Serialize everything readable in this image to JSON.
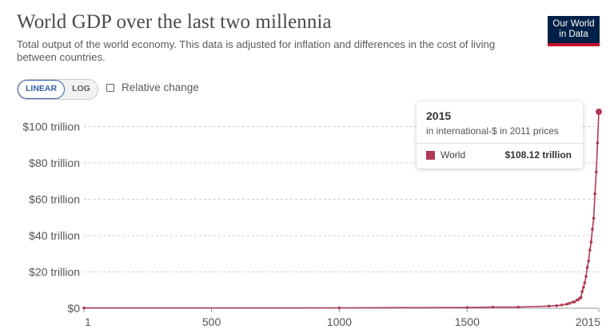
{
  "header": {
    "title": "World GDP over the last two millennia",
    "subtitle": "Total output of the world economy. This data is adjusted for inflation and differences in the cost of living between countries."
  },
  "logo": {
    "line1": "Our World",
    "line2": "in Data",
    "bg": "#002147",
    "accent": "#c8102e"
  },
  "controls": {
    "linear_label": "LINEAR",
    "log_label": "LOG",
    "selected_scale": "linear",
    "relative_change_label": "Relative change",
    "relative_change_checked": false
  },
  "tooltip": {
    "year": "2015",
    "unit": "in international-$ in 2011 prices",
    "entity": "World",
    "value": "$108.12 trillion"
  },
  "colors": {
    "series": "#b13a55",
    "grid": "#cccccc",
    "axis_text": "#555555"
  },
  "chart_data": {
    "type": "line",
    "title": "World GDP over the last two millennia",
    "xlabel": "",
    "ylabel": "",
    "x_ticks": [
      1,
      500,
      1000,
      1500,
      2015
    ],
    "y_ticks": [
      0,
      20,
      40,
      60,
      80,
      100
    ],
    "y_tick_labels": [
      "$0",
      "$20 trillion",
      "$40 trillion",
      "$60 trillion",
      "$80 trillion",
      "$100 trillion"
    ],
    "xlim": [
      1,
      2015
    ],
    "ylim": [
      0,
      108.12
    ],
    "grid": true,
    "series": [
      {
        "name": "World",
        "x": [
          1,
          1000,
          1500,
          1600,
          1700,
          1820,
          1850,
          1870,
          1890,
          1900,
          1913,
          1920,
          1929,
          1935,
          1940,
          1945,
          1950,
          1955,
          1960,
          1965,
          1970,
          1975,
          1980,
          1985,
          1990,
          1995,
          2000,
          2005,
          2010,
          2015
        ],
        "y": [
          0.18,
          0.21,
          0.43,
          0.6,
          0.64,
          1.2,
          1.4,
          1.8,
          2.3,
          2.7,
          3.4,
          3.5,
          4.5,
          4.7,
          5.5,
          5.9,
          9.25,
          11.5,
          14.0,
          17.5,
          22.5,
          26.0,
          32.0,
          36.5,
          43.5,
          49.5,
          63.0,
          75.0,
          91.0,
          108.12
        ]
      }
    ]
  }
}
